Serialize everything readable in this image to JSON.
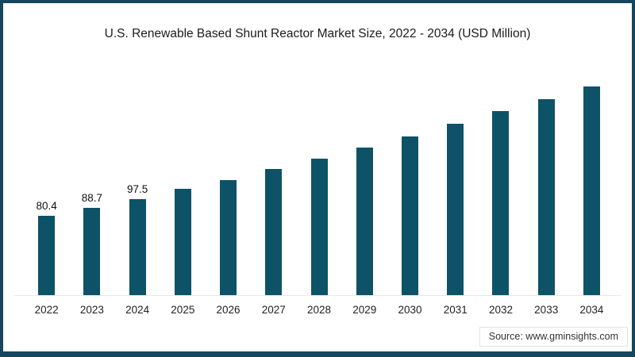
{
  "title": "U.S. Renewable Based Shunt Reactor Market Size, 2022 - 2034 (USD Million)",
  "source": "Source: www.gminsights.com",
  "colors": {
    "bar": "#0e5267",
    "frame_border": "#14465f",
    "axis_line": "#e7e7e7",
    "title_text": "#1b1b1b",
    "label_text": "#222222"
  },
  "chart_data": {
    "type": "bar",
    "title": "U.S. Renewable Based Shunt Reactor Market Size, 2022 - 2034 (USD Million)",
    "unit": "USD Million",
    "categories": [
      "2022",
      "2023",
      "2024",
      "2025",
      "2026",
      "2027",
      "2028",
      "2029",
      "2030",
      "2031",
      "2032",
      "2033",
      "2034"
    ],
    "values": [
      80.4,
      88.7,
      97.5,
      107.5,
      117,
      128,
      138.5,
      149.5,
      161,
      174,
      186.5,
      199,
      211.5
    ],
    "data_labels": [
      "80.4",
      "88.7",
      "97.5",
      null,
      null,
      null,
      null,
      null,
      null,
      null,
      null,
      null,
      null
    ],
    "xlabel": "",
    "ylabel": "",
    "ylim": [
      0,
      235
    ],
    "grid": false,
    "legend": "none",
    "bar_color": "#0e5267"
  }
}
